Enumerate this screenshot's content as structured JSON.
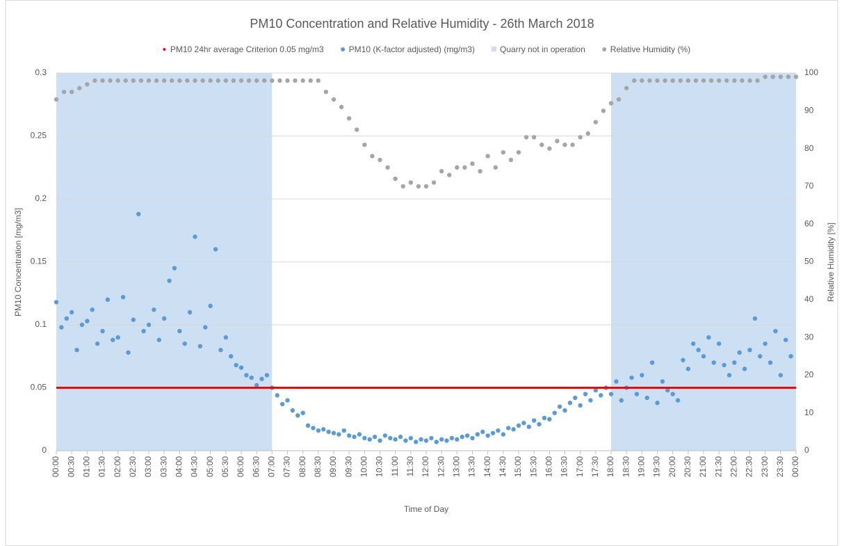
{
  "chart_data": {
    "type": "scatter",
    "title": "PM10 Concentration and Relative Humidity - 26th March 2018",
    "xlabel": "Time of Day",
    "ylabel": "PM10 Concentration [mg/m3]",
    "y2label": "Relative Humidity [%]",
    "xlim": [
      0,
      1440
    ],
    "xticks": [
      {
        "value": 0,
        "label": "00:00"
      },
      {
        "value": 30,
        "label": "00:30"
      },
      {
        "value": 60,
        "label": "01:00"
      },
      {
        "value": 90,
        "label": "01:30"
      },
      {
        "value": 120,
        "label": "02:00"
      },
      {
        "value": 150,
        "label": "02:30"
      },
      {
        "value": 180,
        "label": "03:00"
      },
      {
        "value": 210,
        "label": "03:30"
      },
      {
        "value": 240,
        "label": "04:00"
      },
      {
        "value": 270,
        "label": "04:30"
      },
      {
        "value": 300,
        "label": "05:00"
      },
      {
        "value": 330,
        "label": "05:30"
      },
      {
        "value": 360,
        "label": "06:00"
      },
      {
        "value": 390,
        "label": "06:30"
      },
      {
        "value": 420,
        "label": "07:00"
      },
      {
        "value": 450,
        "label": "07:30"
      },
      {
        "value": 480,
        "label": "08:00"
      },
      {
        "value": 510,
        "label": "08:30"
      },
      {
        "value": 540,
        "label": "09:00"
      },
      {
        "value": 570,
        "label": "09:30"
      },
      {
        "value": 600,
        "label": "10:00"
      },
      {
        "value": 630,
        "label": "10:30"
      },
      {
        "value": 660,
        "label": "11:00"
      },
      {
        "value": 690,
        "label": "11:30"
      },
      {
        "value": 720,
        "label": "12:00"
      },
      {
        "value": 750,
        "label": "12:30"
      },
      {
        "value": 780,
        "label": "13:00"
      },
      {
        "value": 810,
        "label": "13:30"
      },
      {
        "value": 840,
        "label": "14:00"
      },
      {
        "value": 870,
        "label": "14:30"
      },
      {
        "value": 900,
        "label": "15:00"
      },
      {
        "value": 930,
        "label": "15:30"
      },
      {
        "value": 960,
        "label": "16:00"
      },
      {
        "value": 990,
        "label": "16:30"
      },
      {
        "value": 1020,
        "label": "17:00"
      },
      {
        "value": 1050,
        "label": "17:30"
      },
      {
        "value": 1080,
        "label": "18:00"
      },
      {
        "value": 1110,
        "label": "18:30"
      },
      {
        "value": 1140,
        "label": "19:00"
      },
      {
        "value": 1170,
        "label": "19:30"
      },
      {
        "value": 1200,
        "label": "20:00"
      },
      {
        "value": 1230,
        "label": "20:30"
      },
      {
        "value": 1260,
        "label": "21:00"
      },
      {
        "value": 1290,
        "label": "21:30"
      },
      {
        "value": 1320,
        "label": "22:00"
      },
      {
        "value": 1350,
        "label": "22:30"
      },
      {
        "value": 1380,
        "label": "23:00"
      },
      {
        "value": 1410,
        "label": "23:30"
      },
      {
        "value": 1440,
        "label": "00:00"
      }
    ],
    "ylim": [
      0,
      0.3
    ],
    "yticks": [
      0,
      0.05,
      0.1,
      0.15,
      0.2,
      0.25,
      0.3
    ],
    "y2lim": [
      0,
      100
    ],
    "y2ticks": [
      0,
      10,
      20,
      30,
      40,
      50,
      60,
      70,
      80,
      90,
      100
    ],
    "grid": true,
    "legend": "top",
    "series": [
      {
        "name": "PM10 24hr average Criterion 0.05 mg/m3",
        "color": "#ff0000",
        "type": "hline",
        "value": 0.05
      },
      {
        "name": "PM10 (K-factor adjusted) (mg/m3)",
        "color": "#5b9bd5",
        "type": "scatter",
        "x": [
          0,
          10,
          20,
          30,
          40,
          50,
          60,
          70,
          80,
          90,
          100,
          110,
          120,
          130,
          140,
          150,
          160,
          170,
          180,
          190,
          200,
          210,
          220,
          230,
          240,
          250,
          260,
          270,
          280,
          290,
          300,
          310,
          320,
          330,
          340,
          350,
          360,
          370,
          380,
          390,
          400,
          410,
          420,
          430,
          440,
          450,
          460,
          470,
          480,
          490,
          500,
          510,
          520,
          530,
          540,
          550,
          560,
          570,
          580,
          590,
          600,
          610,
          620,
          630,
          640,
          650,
          660,
          670,
          680,
          690,
          700,
          710,
          720,
          730,
          740,
          750,
          760,
          770,
          780,
          790,
          800,
          810,
          820,
          830,
          840,
          850,
          860,
          870,
          880,
          890,
          900,
          910,
          920,
          930,
          940,
          950,
          960,
          970,
          980,
          990,
          1000,
          1010,
          1020,
          1030,
          1040,
          1050,
          1060,
          1070,
          1080,
          1090,
          1100,
          1110,
          1120,
          1130,
          1140,
          1150,
          1160,
          1170,
          1180,
          1190,
          1200,
          1210,
          1220,
          1230,
          1240,
          1250,
          1260,
          1270,
          1280,
          1290,
          1300,
          1310,
          1320,
          1330,
          1340,
          1350,
          1360,
          1370,
          1380,
          1390,
          1400,
          1410,
          1420,
          1430
        ],
        "values": [
          0.118,
          0.098,
          0.105,
          0.11,
          0.08,
          0.1,
          0.103,
          0.112,
          0.085,
          0.095,
          0.12,
          0.088,
          0.09,
          0.122,
          0.078,
          0.104,
          0.188,
          0.095,
          0.1,
          0.112,
          0.088,
          0.105,
          0.135,
          0.145,
          0.095,
          0.085,
          0.11,
          0.17,
          0.083,
          0.098,
          0.115,
          0.16,
          0.08,
          0.09,
          0.075,
          0.068,
          0.066,
          0.06,
          0.058,
          0.052,
          0.057,
          0.06,
          0.05,
          0.044,
          0.037,
          0.04,
          0.032,
          0.028,
          0.03,
          0.02,
          0.018,
          0.016,
          0.017,
          0.015,
          0.014,
          0.013,
          0.016,
          0.012,
          0.011,
          0.013,
          0.01,
          0.009,
          0.011,
          0.008,
          0.012,
          0.01,
          0.009,
          0.011,
          0.008,
          0.01,
          0.007,
          0.009,
          0.008,
          0.01,
          0.007,
          0.009,
          0.008,
          0.01,
          0.009,
          0.011,
          0.012,
          0.01,
          0.013,
          0.015,
          0.012,
          0.014,
          0.016,
          0.013,
          0.018,
          0.017,
          0.02,
          0.022,
          0.019,
          0.024,
          0.021,
          0.026,
          0.025,
          0.03,
          0.035,
          0.032,
          0.038,
          0.042,
          0.036,
          0.045,
          0.04,
          0.048,
          0.044,
          0.05,
          0.045,
          0.055,
          0.04,
          0.05,
          0.058,
          0.045,
          0.06,
          0.042,
          0.07,
          0.038,
          0.055,
          0.048,
          0.045,
          0.04,
          0.072,
          0.065,
          0.085,
          0.08,
          0.075,
          0.09,
          0.07,
          0.085,
          0.068,
          0.06,
          0.07,
          0.078,
          0.065,
          0.08,
          0.105,
          0.075,
          0.085,
          0.07,
          0.095,
          0.06,
          0.088,
          0.075
        ]
      },
      {
        "name": "Quarry not in operation",
        "color": "#cddff2",
        "type": "span",
        "spans": [
          [
            0,
            420
          ],
          [
            1080,
            1440
          ]
        ]
      },
      {
        "name": "Relative Humidity (%)",
        "color": "#a5a5a5",
        "type": "scatter",
        "axis": "y2",
        "x": [
          0,
          15,
          30,
          45,
          60,
          75,
          90,
          105,
          120,
          135,
          150,
          165,
          180,
          195,
          210,
          225,
          240,
          255,
          270,
          285,
          300,
          315,
          330,
          345,
          360,
          375,
          390,
          405,
          420,
          435,
          450,
          465,
          480,
          495,
          510,
          525,
          540,
          555,
          570,
          585,
          600,
          615,
          630,
          645,
          660,
          675,
          690,
          705,
          720,
          735,
          750,
          765,
          780,
          795,
          810,
          825,
          840,
          855,
          870,
          885,
          900,
          915,
          930,
          945,
          960,
          975,
          990,
          1005,
          1020,
          1035,
          1050,
          1065,
          1080,
          1095,
          1110,
          1125,
          1140,
          1155,
          1170,
          1185,
          1200,
          1215,
          1230,
          1245,
          1260,
          1275,
          1290,
          1305,
          1320,
          1335,
          1350,
          1365,
          1380,
          1395,
          1410,
          1425,
          1440
        ],
        "values": [
          93,
          95,
          95,
          96,
          97,
          98,
          98,
          98,
          98,
          98,
          98,
          98,
          98,
          98,
          98,
          98,
          98,
          98,
          98,
          98,
          98,
          98,
          98,
          98,
          98,
          98,
          98,
          98,
          98,
          98,
          98,
          98,
          98,
          98,
          98,
          95,
          93,
          91,
          88,
          85,
          81,
          78,
          77,
          75,
          72,
          70,
          71,
          70,
          70,
          71,
          74,
          73,
          75,
          75,
          76,
          74,
          78,
          75,
          79,
          77,
          79,
          83,
          83,
          81,
          80,
          82,
          81,
          81,
          83,
          84,
          87,
          90,
          92,
          93,
          96,
          98,
          98,
          98,
          98,
          98,
          98,
          98,
          98,
          98,
          98,
          98,
          98,
          98,
          98,
          98,
          98,
          98,
          99,
          99,
          99,
          99,
          99
        ]
      }
    ]
  }
}
